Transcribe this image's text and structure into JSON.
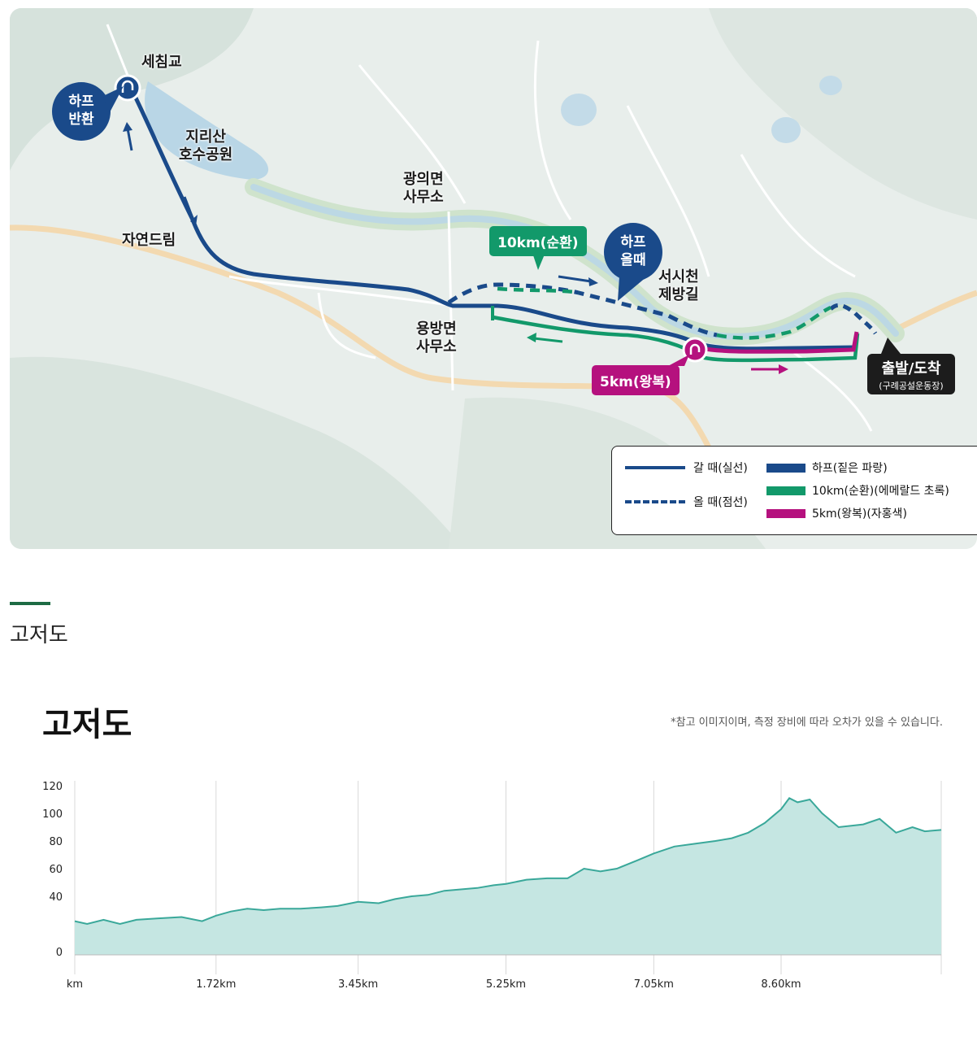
{
  "map": {
    "labels": {
      "sechimgyo": "세침교",
      "jirisan_park": "지리산\n호수공원",
      "jayeondeurim": "자연드림",
      "gwangui": "광의면\n사무소",
      "yongbang": "용방면\n사무소",
      "seosicheon": "서시천\n제방길"
    },
    "half_turn": "하프\n반환",
    "half_return": "하프\n올때",
    "tag_10km": "10km(순환)",
    "tag_5km": "5km(왕복)",
    "start_finish": {
      "title": "출발/도착",
      "sub": "(구례공설운동장)"
    },
    "legend": {
      "solid": "갈 때(실선)",
      "dashed": "올 때(점선)",
      "half": "하프(짙은 파랑)",
      "ten": "10km(순환)(에메랄드 초록)",
      "five": "5km(왕복)(자홍색)"
    },
    "colors": {
      "half": "#1a4a8a",
      "ten": "#12996a",
      "five": "#b5117e"
    }
  },
  "section": {
    "title": "고저도"
  },
  "chart": {
    "title": "고저도",
    "note": "*참고 이미지이며, 측정 장비에 따라 오차가 있을 수 있습니다."
  },
  "chart_data": {
    "type": "area",
    "xlabel": "",
    "ylabel": "",
    "ylim": [
      0,
      120
    ],
    "yticks": [
      0,
      20,
      40,
      60,
      80,
      100,
      120
    ],
    "ytick_labels": [
      "0",
      "",
      "40",
      "60",
      "80",
      "100",
      "120"
    ],
    "xlim": [
      0,
      10.55
    ],
    "xticks": [
      0,
      1.72,
      3.45,
      5.25,
      7.05,
      8.6,
      10.55
    ],
    "xtick_labels": [
      "km",
      "1.72km",
      "3.45km",
      "5.25km",
      "7.05km",
      "8.60km",
      ""
    ],
    "grid": "vertical",
    "color": "#3aa89a",
    "fill": "#c5e6e2",
    "x": [
      0,
      0.15,
      0.35,
      0.55,
      0.75,
      1.0,
      1.3,
      1.55,
      1.72,
      1.9,
      2.1,
      2.3,
      2.5,
      2.75,
      3.0,
      3.2,
      3.45,
      3.7,
      3.9,
      4.1,
      4.3,
      4.5,
      4.7,
      4.9,
      5.1,
      5.25,
      5.5,
      5.75,
      6.0,
      6.2,
      6.4,
      6.6,
      6.85,
      7.05,
      7.3,
      7.55,
      7.8,
      8.0,
      8.2,
      8.4,
      8.6,
      8.7,
      8.8,
      8.95,
      9.1,
      9.3,
      9.6,
      9.8,
      10.0,
      10.2,
      10.35,
      10.55
    ],
    "y": [
      22,
      20,
      23,
      20,
      23,
      24,
      25,
      22,
      26,
      29,
      31,
      30,
      31,
      31,
      32,
      33,
      36,
      35,
      38,
      40,
      41,
      44,
      45,
      46,
      48,
      49,
      52,
      53,
      53,
      60,
      58,
      60,
      66,
      71,
      76,
      78,
      80,
      82,
      86,
      93,
      103,
      111,
      108,
      110,
      100,
      90,
      92,
      96,
      86,
      90,
      87,
      88
    ]
  }
}
